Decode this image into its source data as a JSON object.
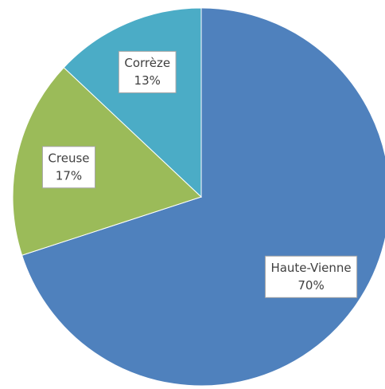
{
  "chart_data": {
    "type": "pie",
    "categories": [
      "Haute-Vienne",
      "Creuse",
      "Corrèze"
    ],
    "values": [
      70,
      17,
      13
    ],
    "value_labels": [
      "70%",
      "17%",
      "13%"
    ],
    "colors": [
      "#4f81bd",
      "#9bbb59",
      "#4bacc6"
    ]
  }
}
